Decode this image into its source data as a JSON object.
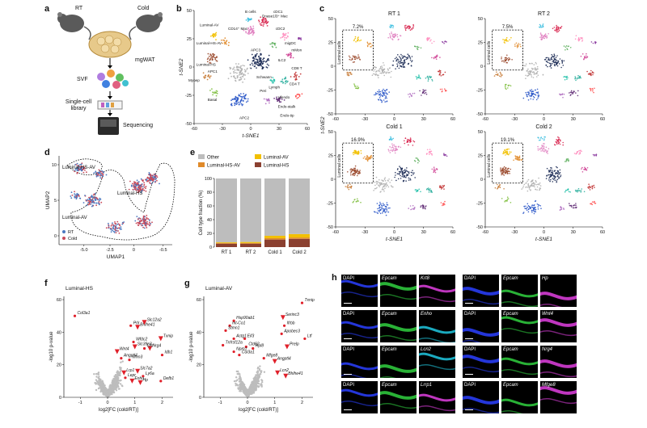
{
  "panel_a": {
    "label": "a",
    "rt_label": "RT",
    "cold_label": "Cold",
    "tissue_label": "mgWAT",
    "svf_label": "SVF",
    "library_label": "Single-cell library",
    "seq_label": "Sequencing"
  },
  "panel_b": {
    "label": "b",
    "xlabel": "t-SNE1",
    "ylabel": "t-SNE2",
    "xticks": [
      "-60",
      "-30",
      "0",
      "30",
      "60"
    ],
    "yticks": [
      "50",
      "25",
      "0",
      "-25",
      "-50"
    ],
    "clusters": [
      {
        "name": "Luminal-AV",
        "color": "#f2c000"
      },
      {
        "name": "Luminal-HS-AV",
        "color": "#e08a2a"
      },
      {
        "name": "Luminal-HS",
        "color": "#9b4a2e"
      },
      {
        "name": "APC1",
        "color": "#b0b0b0"
      },
      {
        "name": "Myoep",
        "color": "#c87d3a"
      },
      {
        "name": "Basal",
        "color": "#7fbf3f"
      },
      {
        "name": "APC2",
        "color": "#2a56c8"
      },
      {
        "name": "APC3",
        "color": "#1c2b55"
      },
      {
        "name": "CD14⁺ Mac",
        "color": "#e07fc0"
      },
      {
        "name": "Dnase1l3⁺ Mac",
        "color": "#d8264f"
      },
      {
        "name": "B cells",
        "color": "#3dbfe0"
      },
      {
        "name": "cDC1",
        "color": "#8c3ca0"
      },
      {
        "name": "cDC2",
        "color": "#ff8fbf"
      },
      {
        "name": "migDC",
        "color": "#d04898"
      },
      {
        "name": "mMon",
        "color": "#f08080"
      },
      {
        "name": "Endo-stalk",
        "color": "#5f2a74"
      },
      {
        "name": "Endo-tip",
        "color": "#9d5aa8"
      },
      {
        "name": "Vfendo",
        "color": "#b06ec0"
      },
      {
        "name": "Lymph",
        "color": "#30b0a0"
      },
      {
        "name": "Schwann",
        "color": "#20c0a8"
      },
      {
        "name": "ILC2",
        "color": "#5fb05f"
      },
      {
        "name": "CD8 T",
        "color": "#c03030"
      },
      {
        "name": "CD4 T",
        "color": "#ff5050"
      },
      {
        "name": "Peri",
        "color": "#6a3a2a"
      }
    ]
  },
  "panel_c": {
    "label": "c",
    "subplots": [
      {
        "title": "RT 1",
        "pct": "7.2%"
      },
      {
        "title": "RT 2",
        "pct": "7.5%"
      },
      {
        "title": "Cold 1",
        "pct": "16.9%"
      },
      {
        "title": "Cold 2",
        "pct": "19.1%"
      }
    ],
    "box_label": "Luminal cells",
    "xlabel": "t-SNE1",
    "ylabel": "t-SNE2",
    "xticks": [
      "-60",
      "-30",
      "0",
      "30",
      "60"
    ],
    "yticks": [
      "50",
      "25",
      "0",
      "-25",
      "-50"
    ]
  },
  "panel_d": {
    "label": "d",
    "xlabel": "UMAP1",
    "ylabel": "UMAP2",
    "xticks": [
      "-5.0",
      "-2.5",
      "0",
      "-0.5"
    ],
    "yticks": [
      "10",
      "5",
      "0"
    ],
    "region_labels": [
      "Luminal-HS-AV",
      "Luminal-HS",
      "Luminal-AV"
    ],
    "legend": [
      {
        "name": "RT",
        "color": "#4a78c0"
      },
      {
        "name": "Cold",
        "color": "#c84a5a"
      }
    ]
  },
  "panel_e": {
    "label": "e",
    "legend": [
      {
        "name": "Other",
        "color": "#bdbdbd"
      },
      {
        "name": "Luminal-AV",
        "color": "#f2c000"
      },
      {
        "name": "Luminal-HS-AV",
        "color": "#e08a2a"
      },
      {
        "name": "Luminal-HS",
        "color": "#8b4030"
      }
    ]
  },
  "chart_data": [
    {
      "type": "bar",
      "panel": "e",
      "stacked": true,
      "categories": [
        "RT 1",
        "RT 2",
        "Cold 1",
        "Cold 2"
      ],
      "ylabel": "Cell type fraction (%)",
      "ylim": [
        0,
        100
      ],
      "yticks": [
        0,
        20,
        40,
        60,
        80,
        100
      ],
      "series": [
        {
          "name": "Luminal-HS",
          "values": [
            5,
            5,
            11,
            12
          ]
        },
        {
          "name": "Luminal-HS-AV",
          "values": [
            1,
            1,
            2,
            2
          ]
        },
        {
          "name": "Luminal-AV",
          "values": [
            1,
            1.5,
            3.5,
            5
          ]
        },
        {
          "name": "Other",
          "values": [
            93,
            92.5,
            83.5,
            81
          ]
        }
      ]
    },
    {
      "type": "scatter",
      "panel": "f",
      "title": "Luminal-HS",
      "xlabel": "log2[FC (cold/RT)]",
      "ylabel": "-log10 p-value",
      "xlim": [
        -1.6,
        2.4
      ],
      "ylim": [
        0,
        62
      ],
      "xticks": [
        -1,
        0,
        1,
        2
      ],
      "yticks": [
        0,
        20,
        40,
        60
      ],
      "highlighted": [
        {
          "gene": "Col3a1",
          "x": -1.2,
          "y": 50
        },
        {
          "gene": "Prlr",
          "x": 0.85,
          "y": 44
        },
        {
          "gene": "Bhlhe41",
          "x": 1.1,
          "y": 43
        },
        {
          "gene": "Slc12a2",
          "x": 1.35,
          "y": 46
        },
        {
          "gene": "Txnip",
          "x": 1.95,
          "y": 36
        },
        {
          "gene": "Wfdc2",
          "x": 0.95,
          "y": 34
        },
        {
          "gene": "Slc39c3",
          "x": 1.0,
          "y": 31
        },
        {
          "gene": "Nrg4",
          "x": 1.55,
          "y": 30
        },
        {
          "gene": "Wnt4",
          "x": 0.35,
          "y": 28
        },
        {
          "gene": "Angptl4",
          "x": 0.5,
          "y": 24
        },
        {
          "gene": "Cfd",
          "x": 1.35,
          "y": 30
        },
        {
          "gene": "Nrxn3",
          "x": 0.8,
          "y": 23
        },
        {
          "gene": "Lrp1",
          "x": 0.6,
          "y": 15
        },
        {
          "gene": "Slc7a2",
          "x": 1.1,
          "y": 16
        },
        {
          "gene": "Ly6a",
          "x": 1.3,
          "y": 13
        },
        {
          "gene": "Idb1",
          "x": 2.0,
          "y": 26
        },
        {
          "gene": "Lepr",
          "x": 0.65,
          "y": 12
        },
        {
          "gene": "Enho",
          "x": 0.9,
          "y": 10
        },
        {
          "gene": "Hp",
          "x": 1.2,
          "y": 9
        },
        {
          "gene": "Defb1",
          "x": 1.95,
          "y": 10
        }
      ]
    },
    {
      "type": "scatter",
      "panel": "g",
      "title": "Luminal-AV",
      "xlabel": "log2[FC (cold/RT)]",
      "ylabel": "-log10 p-value",
      "xlim": [
        -1.6,
        2.4
      ],
      "ylim": [
        0,
        62
      ],
      "xticks": [
        -1,
        0,
        1,
        2
      ],
      "yticks": [
        0,
        20,
        40,
        60
      ],
      "highlighted": [
        {
          "gene": "Txnip",
          "x": 2.0,
          "y": 58
        },
        {
          "gene": "Hsp90ab1",
          "x": -0.5,
          "y": 47
        },
        {
          "gene": "mt-Co1",
          "x": -0.65,
          "y": 44
        },
        {
          "gene": "Serinc3",
          "x": 1.3,
          "y": 49
        },
        {
          "gene": "Stmn1",
          "x": -0.8,
          "y": 41
        },
        {
          "gene": "Ifrbb",
          "x": 1.35,
          "y": 44
        },
        {
          "gene": "Apobec3",
          "x": 1.25,
          "y": 39
        },
        {
          "gene": "Actg1",
          "x": -0.5,
          "y": 36
        },
        {
          "gene": "Eif3",
          "x": -0.1,
          "y": 36
        },
        {
          "gene": "Tnfrsf12a",
          "x": -0.9,
          "y": 32
        },
        {
          "gene": "Ctd62",
          "x": -0.05,
          "y": 31
        },
        {
          "gene": "Rpl8",
          "x": 0.2,
          "y": 30
        },
        {
          "gene": "Npm1",
          "x": -0.5,
          "y": 28
        },
        {
          "gene": "Col3a1",
          "x": -0.3,
          "y": 26
        },
        {
          "gene": "Prelp",
          "x": 1.45,
          "y": 31
        },
        {
          "gene": "Mfge8",
          "x": 0.6,
          "y": 24
        },
        {
          "gene": "Ltf",
          "x": 2.1,
          "y": 36
        },
        {
          "gene": "Angptl4",
          "x": 1.0,
          "y": 22
        },
        {
          "gene": "Lcn2",
          "x": 1.1,
          "y": 15
        },
        {
          "gene": "Bhlhe41",
          "x": 1.4,
          "y": 13
        }
      ]
    }
  ],
  "panel_f": {
    "label": "f"
  },
  "panel_g": {
    "label": "g"
  },
  "panel_h": {
    "label": "h",
    "rows": [
      [
        "DAPI",
        "Epcam",
        "Krt8",
        "DAPI",
        "Epcam",
        "Hp"
      ],
      [
        "DAPI",
        "Epcam",
        "Enho",
        "DAPI",
        "Epcam",
        "Wnt4"
      ],
      [
        "DAPI",
        "Epcam",
        "Lcn2",
        "DAPI",
        "Epcam",
        "Nrg4"
      ],
      [
        "DAPI",
        "Epcam",
        "Lrrp1",
        "DAPI",
        "Epcam",
        "Mfge8"
      ]
    ],
    "colors": {
      "dapi": "#2a40ff",
      "epcam": "#30d040",
      "third_left": "#e040e0",
      "third_alt": "#20c8e0"
    }
  }
}
